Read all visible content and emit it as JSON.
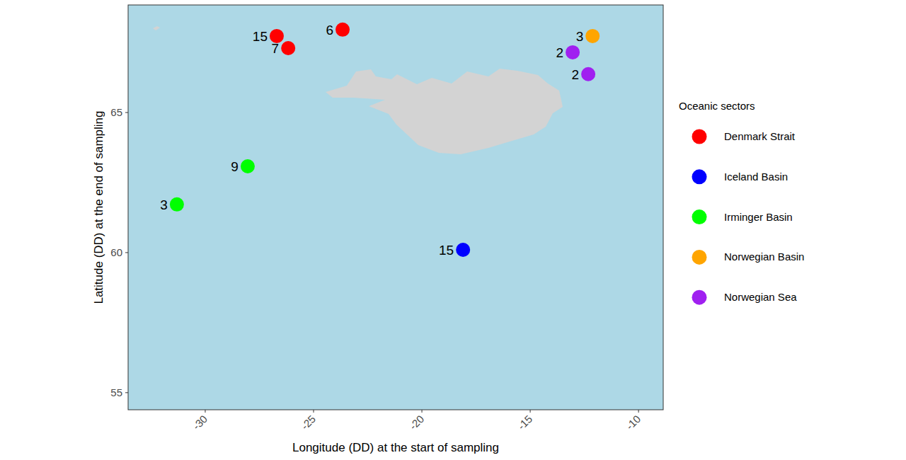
{
  "chart_data": {
    "type": "scatter",
    "x_label": "Longitude (DD) at the start of sampling",
    "y_label": "Latitude (DD) at the end of sampling",
    "legend_title": "Oceanic sectors",
    "legend": "right",
    "grid": false,
    "marker": "circle",
    "xlim": [
      -33.56,
      -8.86
    ],
    "ylim": [
      54.39,
      68.84
    ],
    "xticks": [
      -30,
      -25,
      -20,
      -15,
      -10
    ],
    "yticks": [
      55,
      60,
      65
    ],
    "series": [
      {
        "name": "Denmark Strait",
        "color": "#FF0000",
        "x": [
          -26.7,
          -26.17,
          -23.66
        ],
        "values": [
          67.73,
          67.3,
          67.96
        ],
        "counts": [
          15,
          7,
          6
        ]
      },
      {
        "name": "Iceland Basin",
        "color": "#0000FF",
        "x": [
          -18.1
        ],
        "values": [
          60.1
        ],
        "counts": [
          15
        ]
      },
      {
        "name": "Irminger Basin",
        "color": "#00FF00",
        "x": [
          -28.04,
          -31.31
        ],
        "values": [
          63.08,
          61.72
        ],
        "counts": [
          9,
          3
        ]
      },
      {
        "name": "Norwegian Basin",
        "color": "#FFA500",
        "x": [
          -12.12
        ],
        "values": [
          67.73
        ],
        "counts": [
          3
        ]
      },
      {
        "name": "Norwegian Sea",
        "color": "#A020F0",
        "x": [
          -13.04,
          -12.32
        ],
        "values": [
          67.15,
          66.37
        ],
        "counts": [
          2,
          2
        ]
      }
    ]
  }
}
